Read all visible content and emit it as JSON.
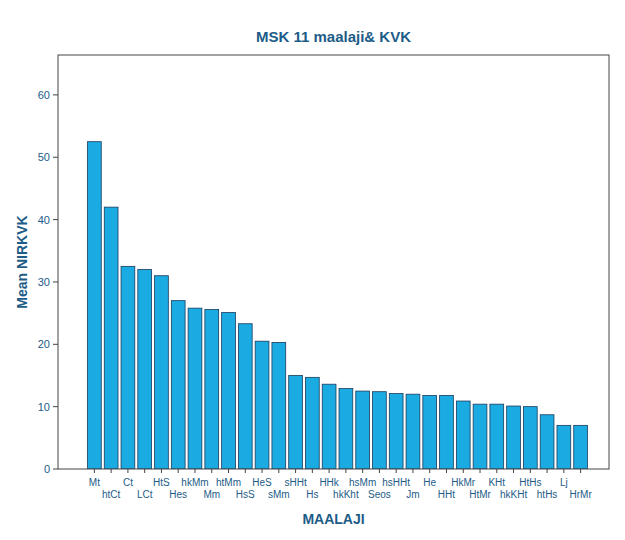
{
  "chart_data": {
    "type": "bar",
    "title": "MSK 11 maalaji& KVK",
    "x_label": "MAALAJI",
    "y_label": "Mean NIRKVK",
    "categories": [
      "Mt",
      "htCt",
      "Ct",
      "LCt",
      "HtS",
      "Hes",
      "hkMm",
      "Mm",
      "htMm",
      "HsS",
      "HeS",
      "sMm",
      "sHHt",
      "Hs",
      "HHk",
      "hkKht",
      "hsMm",
      "Seos",
      "hsHHt",
      "Jm",
      "He",
      "HHt",
      "HkMr",
      "HtMr",
      "KHt",
      "hkKHt",
      "HtHs",
      "htHs",
      "Lj",
      "HrMr"
    ],
    "values": [
      52.5,
      42.0,
      32.5,
      32.0,
      31.0,
      27.0,
      25.8,
      25.6,
      25.1,
      23.3,
      20.5,
      20.3,
      15.0,
      14.7,
      13.6,
      12.9,
      12.5,
      12.4,
      12.1,
      12.0,
      11.8,
      11.8,
      10.9,
      10.4,
      10.4,
      10.1,
      10.0,
      8.7,
      7.0,
      7.0
    ],
    "color": "#1aabe3",
    "ylim": [
      0,
      66.4
    ],
    "yticks": [
      0,
      10,
      20,
      30,
      40,
      50,
      60
    ]
  }
}
